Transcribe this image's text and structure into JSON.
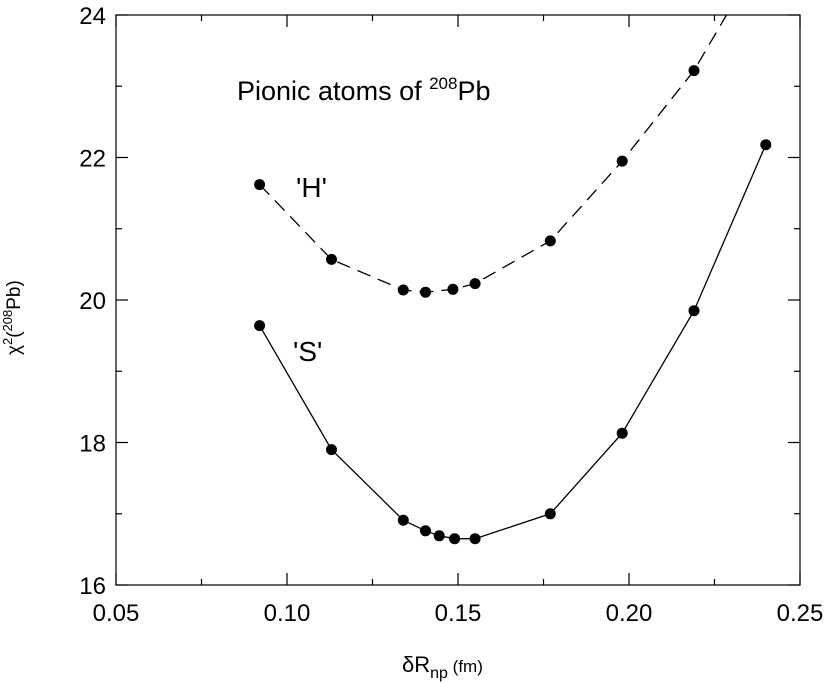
{
  "chart_data": {
    "type": "line",
    "title": "",
    "annotation": {
      "text": "Pionic atoms of ",
      "sup": "208",
      "suffix": "Pb"
    },
    "xlabel": {
      "main": "δR",
      "sub": "np",
      "unit": " (fm)"
    },
    "ylabel": {
      "main": "χ",
      "sup": "2",
      "mid": "(",
      "sup2": "208",
      "end": "Pb)"
    },
    "xlim": [
      0.05,
      0.25
    ],
    "ylim": [
      16,
      24
    ],
    "xticks": [
      0.05,
      0.1,
      0.15,
      0.2,
      0.25
    ],
    "xtick_labels": [
      "0.05",
      "0.10",
      "0.15",
      "0.20",
      "0.25"
    ],
    "yticks": [
      16,
      18,
      20,
      22,
      24
    ],
    "ytick_labels": [
      "16",
      "18",
      "20",
      "22",
      "24"
    ],
    "grid": false,
    "series": [
      {
        "name": "'H'",
        "style": "dashed",
        "x": [
          0.092,
          0.113,
          0.134,
          0.1405,
          0.1485,
          0.155,
          0.177,
          0.198,
          0.219,
          0.2285
        ],
        "y": [
          21.62,
          20.57,
          20.14,
          20.11,
          20.15,
          20.23,
          20.83,
          21.95,
          23.22,
          24.0
        ],
        "markers": [
          true,
          true,
          true,
          true,
          true,
          true,
          true,
          true,
          true,
          false
        ]
      },
      {
        "name": "'S'",
        "style": "solid",
        "x": [
          0.092,
          0.113,
          0.134,
          0.1405,
          0.1445,
          0.149,
          0.155,
          0.177,
          0.198,
          0.219,
          0.24
        ],
        "y": [
          19.64,
          17.9,
          16.91,
          16.76,
          16.69,
          16.65,
          16.65,
          17.0,
          18.13,
          19.85,
          22.18
        ],
        "markers": [
          true,
          true,
          true,
          true,
          true,
          true,
          true,
          true,
          true,
          true,
          true
        ]
      }
    ],
    "series_labels": [
      "'H'",
      "'S'"
    ]
  }
}
